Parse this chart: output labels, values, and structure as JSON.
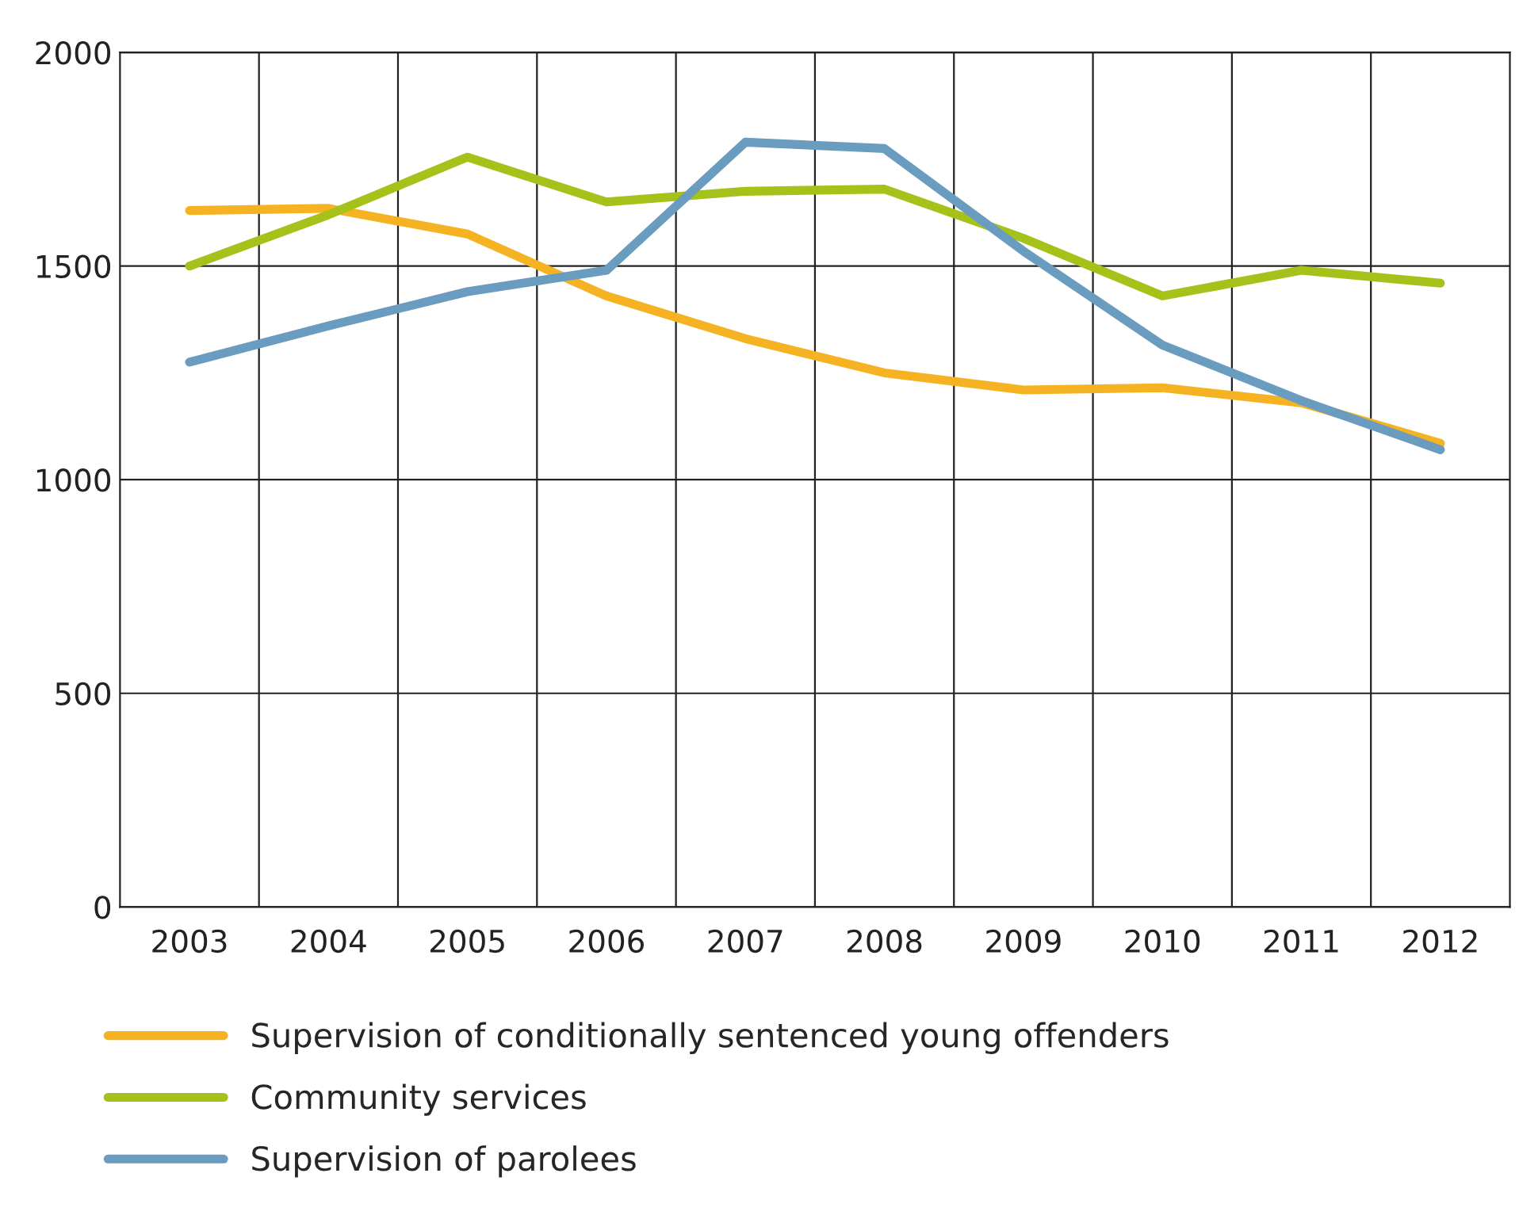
{
  "chart_data": {
    "type": "line",
    "categories": [
      "2003",
      "2004",
      "2005",
      "2006",
      "2007",
      "2008",
      "2009",
      "2010",
      "2011",
      "2012"
    ],
    "series": [
      {
        "name": "Supervision of conditionally sentenced young offenders",
        "color": "#f5b324",
        "values": [
          1630,
          1635,
          1575,
          1430,
          1330,
          1250,
          1210,
          1215,
          1180,
          1085
        ]
      },
      {
        "name": "Community services",
        "color": "#a5c21a",
        "values": [
          1500,
          1620,
          1755,
          1650,
          1675,
          1680,
          1565,
          1430,
          1490,
          1460
        ]
      },
      {
        "name": "Supervision of parolees",
        "color": "#6a9cbf",
        "values": [
          1275,
          1360,
          1440,
          1490,
          1790,
          1775,
          1535,
          1315,
          1185,
          1070
        ]
      }
    ],
    "ylim": [
      0,
      2000
    ],
    "yticks": [
      0,
      500,
      1000,
      1500,
      2000
    ],
    "grid": true,
    "legend": "bottom",
    "marker": "none",
    "line_style": "solid"
  }
}
